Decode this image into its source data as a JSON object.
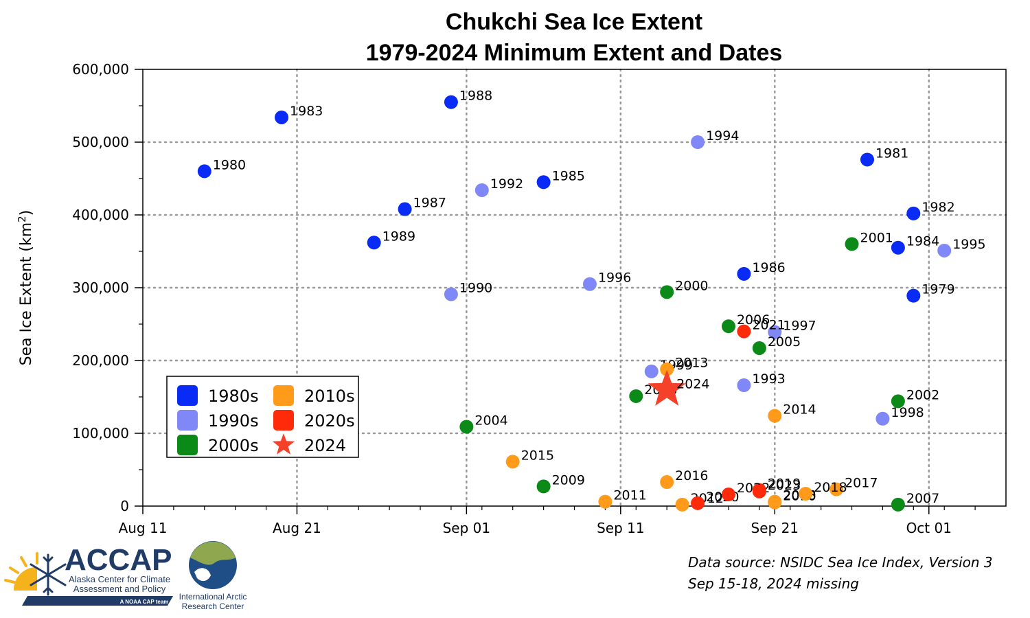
{
  "chart_data": {
    "type": "scatter",
    "title_lines": [
      "Chukchi Sea Ice Extent",
      "1979-2024 Minimum Extent and Dates"
    ],
    "ylabel": "Sea Ice Extent (km",
    "ylabel_sup": "2",
    "ylabel_close": ")",
    "xlim": [
      "2024-08-11",
      "2024-10-06"
    ],
    "ylim": [
      0,
      600000
    ],
    "x_ticks": [
      {
        "date": "2024-08-11",
        "label": "Aug 11"
      },
      {
        "date": "2024-08-21",
        "label": "Aug 21"
      },
      {
        "date": "2024-09-01",
        "label": "Sep 01"
      },
      {
        "date": "2024-09-11",
        "label": "Sep 11"
      },
      {
        "date": "2024-09-21",
        "label": "Sep 21"
      },
      {
        "date": "2024-10-01",
        "label": "Oct 01"
      }
    ],
    "y_ticks": [
      {
        "value": 0,
        "label": "0"
      },
      {
        "value": 100000,
        "label": "100,000"
      },
      {
        "value": 200000,
        "label": "200,000"
      },
      {
        "value": 300000,
        "label": "300,000"
      },
      {
        "value": 400000,
        "label": "400,000"
      },
      {
        "value": 500000,
        "label": "500,000"
      },
      {
        "value": 600000,
        "label": "600,000"
      }
    ],
    "grid": true,
    "legend_position": "lower-left",
    "legend": [
      {
        "label": "1980s",
        "color": "#0a2bf5",
        "marker": "square"
      },
      {
        "label": "1990s",
        "color": "#8088f7",
        "marker": "square"
      },
      {
        "label": "2000s",
        "color": "#0b8a17",
        "marker": "square"
      },
      {
        "label": "2010s",
        "color": "#ff9a1a",
        "marker": "square"
      },
      {
        "label": "2020s",
        "color": "#ff2a0a",
        "marker": "square"
      },
      {
        "label": "2024",
        "color": "#f5402a",
        "marker": "star"
      }
    ],
    "series": [
      {
        "decade": "1980s",
        "color": "#0a2bf5",
        "points": [
          {
            "year": "1979",
            "date": "2024-09-30",
            "extent": 289000
          },
          {
            "year": "1980",
            "date": "2024-08-15",
            "extent": 460000
          },
          {
            "year": "1981",
            "date": "2024-09-27",
            "extent": 476000
          },
          {
            "year": "1982",
            "date": "2024-09-30",
            "extent": 402000
          },
          {
            "year": "1983",
            "date": "2024-08-20",
            "extent": 534000
          },
          {
            "year": "1984",
            "date": "2024-09-29",
            "extent": 355000
          },
          {
            "year": "1985",
            "date": "2024-09-06",
            "extent": 445000
          },
          {
            "year": "1986",
            "date": "2024-09-19",
            "extent": 319000
          },
          {
            "year": "1987",
            "date": "2024-08-28",
            "extent": 408000
          },
          {
            "year": "1988",
            "date": "2024-08-31",
            "extent": 555000
          },
          {
            "year": "1989",
            "date": "2024-08-26",
            "extent": 362000
          }
        ]
      },
      {
        "decade": "1990s",
        "color": "#8088f7",
        "points": [
          {
            "year": "1990",
            "date": "2024-08-31",
            "extent": 291000
          },
          {
            "year": "1992",
            "date": "2024-09-02",
            "extent": 434000
          },
          {
            "year": "1993",
            "date": "2024-09-19",
            "extent": 166000
          },
          {
            "year": "1994",
            "date": "2024-09-16",
            "extent": 500000
          },
          {
            "year": "1995",
            "date": "2024-10-02",
            "extent": 351000
          },
          {
            "year": "1996",
            "date": "2024-09-09",
            "extent": 305000
          },
          {
            "year": "1997",
            "date": "2024-09-21",
            "extent": 239000
          },
          {
            "year": "1998",
            "date": "2024-09-28",
            "extent": 120000
          },
          {
            "year": "1999",
            "date": "2024-09-13",
            "extent": 185000
          }
        ]
      },
      {
        "decade": "2000s",
        "color": "#0b8a17",
        "points": [
          {
            "year": "2000",
            "date": "2024-09-14",
            "extent": 294000
          },
          {
            "year": "2001",
            "date": "2024-09-26",
            "extent": 360000
          },
          {
            "year": "2002",
            "date": "2024-09-29",
            "extent": 144000
          },
          {
            "year": "2003",
            "date": "2024-09-12",
            "extent": 151000
          },
          {
            "year": "2004",
            "date": "2024-09-01",
            "extent": 109000
          },
          {
            "year": "2005",
            "date": "2024-09-20",
            "extent": 217000
          },
          {
            "year": "2006",
            "date": "2024-09-18",
            "extent": 247000
          },
          {
            "year": "2007",
            "date": "2024-09-29",
            "extent": 2000
          },
          {
            "year": "2009",
            "date": "2024-09-06",
            "extent": 27000
          }
        ]
      },
      {
        "decade": "2010s",
        "color": "#ff9a1a",
        "points": [
          {
            "year": "2008",
            "date": "2024-09-21",
            "extent": 6000
          },
          {
            "year": "2010",
            "date": "2024-09-21",
            "extent": 5000
          },
          {
            "year": "2011",
            "date": "2024-09-10",
            "extent": 6000
          },
          {
            "year": "2012",
            "date": "2024-09-15",
            "extent": 2000
          },
          {
            "year": "2013",
            "date": "2024-09-14",
            "extent": 188000
          },
          {
            "year": "2014",
            "date": "2024-09-21",
            "extent": 124000
          },
          {
            "year": "2015",
            "date": "2024-09-04",
            "extent": 61000
          },
          {
            "year": "2016",
            "date": "2024-09-14",
            "extent": 33000
          },
          {
            "year": "2017",
            "date": "2024-09-25",
            "extent": 23000
          },
          {
            "year": "2018",
            "date": "2024-09-23",
            "extent": 17000
          }
        ]
      },
      {
        "decade": "2020s",
        "color": "#ff2a0a",
        "points": [
          {
            "year": "2019",
            "date": "2024-09-20",
            "extent": 22000
          },
          {
            "year": "2020",
            "date": "2024-09-16",
            "extent": 4000
          },
          {
            "year": "2021",
            "date": "2024-09-19",
            "extent": 240000
          },
          {
            "year": "2022",
            "date": "2024-09-18",
            "extent": 16000
          },
          {
            "year": "2023",
            "date": "2024-09-20",
            "extent": 20000
          }
        ]
      }
    ],
    "highlight": {
      "year": "2024",
      "date": "2024-09-14",
      "extent": 160000,
      "color": "#f5402a",
      "marker": "star"
    }
  },
  "source": {
    "line1": "Data source: NSIDC Sea Ice Index, Version 3",
    "line2": "Sep 15-18, 2024 missing"
  },
  "logos": {
    "accap_name": "ACCAP",
    "accap_line1": "Alaska Center for Climate",
    "accap_line2": "Assessment and Policy",
    "accap_tag": "A NOAA CAP team",
    "iarc_line1": "International Arctic",
    "iarc_line2": "Research Center"
  }
}
